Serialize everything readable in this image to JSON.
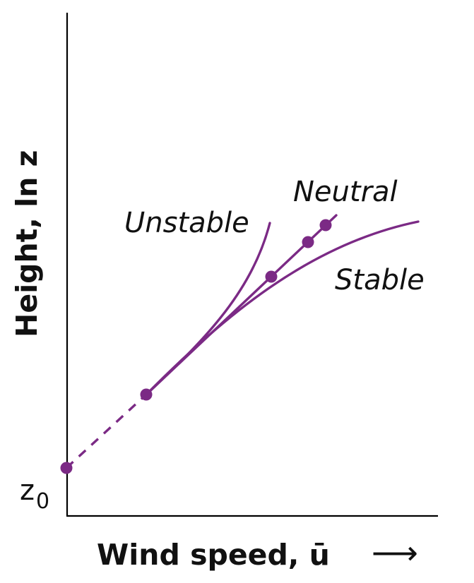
{
  "chart_data": {
    "type": "line",
    "xlabel": "Wind speed, ū",
    "ylabel": "Height, ln z",
    "origin_label": {
      "main": "z",
      "sub": "0"
    },
    "series": [
      {
        "name": "Unstable"
      },
      {
        "name": "Neutral"
      },
      {
        "name": "Stable"
      }
    ],
    "axis_arrow": "⟶",
    "colors": {
      "curve": "#7b2a85",
      "axis": "#000000",
      "text": "#111111"
    }
  }
}
